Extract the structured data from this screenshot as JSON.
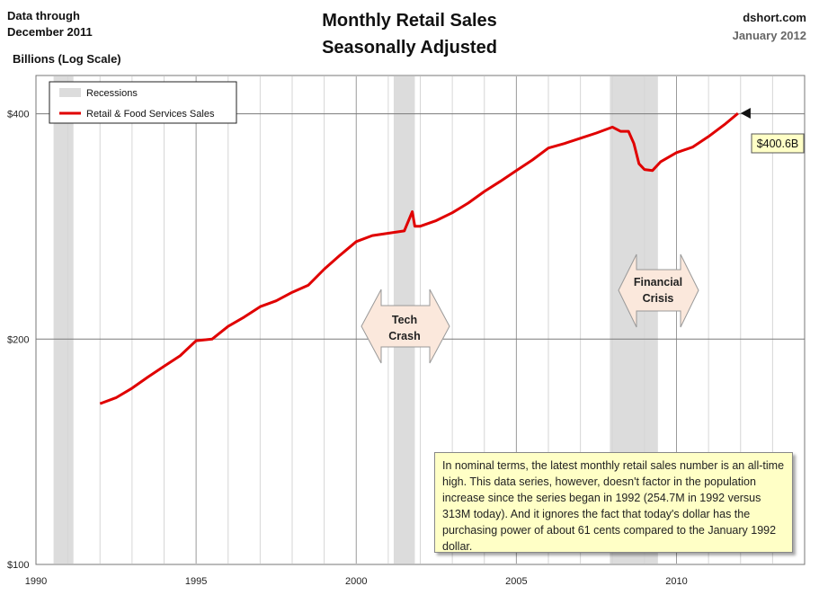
{
  "header": {
    "data_through_line1": "Data through",
    "data_through_line2": "December 2011",
    "title_line1": "Monthly Retail Sales",
    "title_line2": "Seasonally Adjusted",
    "units": "Billions (Log Scale)",
    "source": "dshort.com",
    "date": "January 2012"
  },
  "colors": {
    "series": "#e00000",
    "recession": "#dcdcdc",
    "callout_fill": "#fbe8dc",
    "note_fill": "#ffffc6",
    "value_label_fill": "#ffffc6"
  },
  "annotations": {
    "tech_crash": [
      "Tech",
      "Crash"
    ],
    "financial_crisis": [
      "Financial",
      "Crisis"
    ],
    "latest_value_label": "$400.6B",
    "note": "In nominal terms, the latest monthly retail sales number is an all-time  high. This data series, however, doesn't factor in the population increase since the series began in 1992 (254.7M  in 1992  versus 313M  today). And it ignores the fact that today's dollar has the purchasing power of about 61 cents compared to the January 1992  dollar."
  },
  "chart_data": {
    "type": "line",
    "title": "Monthly Retail Sales Seasonally Adjusted",
    "xlabel": "",
    "ylabel": "Billions (Log Scale)",
    "y_scale": "log",
    "xlim": [
      1990,
      2014
    ],
    "ylim": [
      100,
      450
    ],
    "x_ticks": [
      1990,
      1995,
      2000,
      2005,
      2010
    ],
    "x_tick_labels": [
      "1990",
      "1995",
      "2000",
      "2005",
      "2010"
    ],
    "y_ticks": [
      100,
      200,
      400
    ],
    "y_tick_labels": [
      "$100",
      "$200",
      "$400"
    ],
    "grid": true,
    "legend": {
      "position": "top-left",
      "entries": [
        "Recessions",
        "Retail & Food Services Sales"
      ]
    },
    "recessions": [
      [
        1990.55,
        1991.17
      ],
      [
        2001.17,
        2001.83
      ],
      [
        2007.92,
        2009.42
      ]
    ],
    "series": [
      {
        "name": "Retail & Food Services Sales",
        "x": [
          1992.0,
          1992.5,
          1993.0,
          1993.5,
          1994.0,
          1994.5,
          1995.0,
          1995.5,
          1996.0,
          1996.5,
          1997.0,
          1997.5,
          1998.0,
          1998.5,
          1999.0,
          1999.5,
          2000.0,
          2000.5,
          2001.0,
          2001.5,
          2001.75,
          2001.83,
          2002.0,
          2002.5,
          2003.0,
          2003.5,
          2004.0,
          2004.5,
          2005.0,
          2005.5,
          2006.0,
          2006.5,
          2007.0,
          2007.5,
          2008.0,
          2008.25,
          2008.5,
          2008.67,
          2008.83,
          2009.0,
          2009.25,
          2009.5,
          2010.0,
          2010.5,
          2011.0,
          2011.5,
          2011.92
        ],
        "values": [
          164,
          167,
          172,
          178,
          184,
          190,
          199,
          200,
          208,
          214,
          221,
          225,
          231,
          236,
          248,
          259,
          270,
          275,
          277,
          279,
          296,
          283,
          283,
          288,
          295,
          304,
          315,
          325,
          336,
          347,
          360,
          365,
          371,
          377,
          384,
          379,
          379,
          365,
          343,
          337,
          336,
          345,
          355,
          361,
          373,
          387,
          400.6
        ]
      }
    ]
  }
}
